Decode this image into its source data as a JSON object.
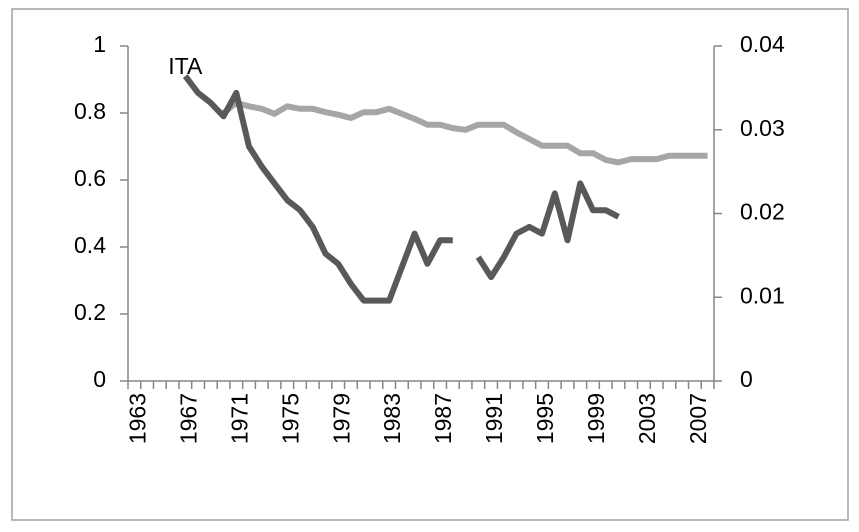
{
  "chart_data": {
    "type": "line",
    "categories": [
      "1963",
      null,
      null,
      null,
      "1967",
      null,
      null,
      null,
      "1971",
      null,
      null,
      null,
      "1975",
      null,
      null,
      null,
      "1979",
      null,
      null,
      null,
      "1983",
      null,
      null,
      null,
      "1987",
      null,
      null,
      null,
      "1991",
      null,
      null,
      null,
      "1995",
      null,
      null,
      null,
      "1999",
      null,
      null,
      null,
      "2003",
      null,
      null,
      null,
      "2007",
      null
    ],
    "series": [
      {
        "name": "ITA",
        "color": "#595959",
        "axis": "y",
        "values": [
          null,
          null,
          null,
          null,
          0.91,
          0.86,
          0.83,
          0.79,
          0.86,
          0.7,
          0.64,
          0.59,
          0.54,
          0.51,
          0.46,
          0.38,
          0.35,
          0.29,
          0.24,
          0.24,
          0.24,
          0.34,
          0.44,
          0.35,
          0.42,
          0.42,
          null,
          0.37,
          0.31,
          0.37,
          0.44,
          0.46,
          0.44,
          0.56,
          0.42,
          0.59,
          0.51,
          0.51,
          0.49,
          null,
          null,
          null,
          null,
          null,
          null,
          null
        ]
      },
      {
        "color": "#a6a6a6",
        "axis": "y2",
        "values": [
          null,
          null,
          null,
          null,
          null,
          null,
          null,
          0.032,
          0.0332,
          0.0328,
          0.0325,
          0.0319,
          0.0328,
          0.0325,
          0.0325,
          0.0321,
          0.0318,
          0.0314,
          0.0321,
          0.0321,
          0.0325,
          0.0319,
          0.0313,
          0.0306,
          0.0306,
          0.0302,
          0.03,
          0.0306,
          0.0306,
          0.0306,
          0.0297,
          0.0289,
          0.0281,
          0.0281,
          0.0281,
          0.0272,
          0.0272,
          0.0264,
          0.0261,
          0.0265,
          0.0265,
          0.0265,
          0.0269,
          0.0269,
          0.0269,
          0.0269
        ]
      }
    ],
    "ylim": [
      0,
      1
    ],
    "yticks": [
      0,
      0.2,
      0.4,
      0.6,
      0.8,
      1
    ],
    "y2lim": [
      0,
      0.04
    ],
    "y2ticks": [
      0,
      0.01,
      0.02,
      0.03,
      0.04
    ],
    "grid": false
  }
}
